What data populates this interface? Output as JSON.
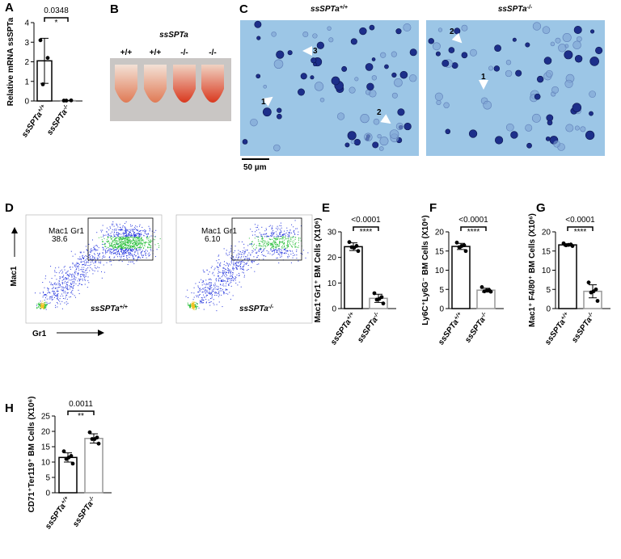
{
  "chart_data": [
    {
      "type": "bar",
      "label": "A",
      "ylabel": "Relative mRNA ssSPTa",
      "categories": [
        "ssSPTa+/+",
        "ssSPTa-/-"
      ],
      "values": [
        2.05,
        0.02
      ],
      "errors": [
        1.15,
        0.01
      ],
      "points": [
        [
          3.1,
          2.2,
          0.85
        ],
        [
          0.02,
          0.03,
          0.02
        ]
      ],
      "colors": [
        "#000000",
        "#999999"
      ],
      "ylim": [
        0,
        4
      ],
      "yticks": [
        0,
        1,
        2,
        3,
        4
      ],
      "pvalue": "0.0348",
      "stars": "*"
    },
    {
      "type": "bar",
      "label": "E",
      "ylabel": "Mac1⁺Gr1⁺ BM Cells (X10⁶)",
      "categories": [
        "ssSPTa+/+",
        "ssSPTa-/-"
      ],
      "values": [
        24.2,
        4.0
      ],
      "errors": [
        1.5,
        1.6
      ],
      "points": [
        [
          26,
          24.5,
          24,
          22.5,
          23.8
        ],
        [
          6,
          4.5,
          3.5,
          2,
          3.8
        ]
      ],
      "colors": [
        "#000000",
        "#999999"
      ],
      "ylim": [
        0,
        30
      ],
      "yticks": [
        0,
        10,
        20,
        30
      ],
      "pvalue": "<0.0001",
      "stars": "****"
    },
    {
      "type": "bar",
      "label": "F",
      "ylabel": "Ly6C⁺Ly6G⁻ BM Cells (X10⁶)",
      "categories": [
        "ssSPTa+/+",
        "ssSPTa-/-"
      ],
      "values": [
        16.2,
        4.8
      ],
      "errors": [
        0.8,
        0.5
      ],
      "points": [
        [
          17.2,
          16.5,
          16,
          15,
          16.3
        ],
        [
          5.6,
          4.8,
          4.5,
          4.4,
          4.7
        ]
      ],
      "colors": [
        "#000000",
        "#999999"
      ],
      "ylim": [
        0,
        20
      ],
      "yticks": [
        0,
        5,
        10,
        15,
        20
      ],
      "pvalue": "<0.0001",
      "stars": "****"
    },
    {
      "type": "bar",
      "label": "G",
      "ylabel": "Mac1⁺ F4/80⁺ BM Cells (X10⁶)",
      "categories": [
        "ssSPTa+/+",
        "ssSPTa-/-"
      ],
      "values": [
        16.6,
        4.5
      ],
      "errors": [
        0.3,
        1.7
      ],
      "points": [
        [
          17,
          16.7,
          16.5,
          16.3,
          16.6
        ],
        [
          6.8,
          5,
          4.2,
          2,
          4.5
        ]
      ],
      "colors": [
        "#000000",
        "#999999"
      ],
      "ylim": [
        0,
        20
      ],
      "yticks": [
        0,
        5,
        10,
        15,
        20
      ],
      "pvalue": "<0.0001",
      "stars": "****"
    },
    {
      "type": "bar",
      "label": "H",
      "ylabel": "CD71⁺Ter119⁺ BM Cells (X10⁶)",
      "categories": [
        "ssSPTa+/+",
        "ssSPTa-/-"
      ],
      "values": [
        11.5,
        17.7
      ],
      "errors": [
        1.5,
        1.5
      ],
      "points": [
        [
          13.5,
          12,
          11,
          9.5,
          11.5
        ],
        [
          19.7,
          18,
          17.5,
          16,
          17.5
        ]
      ],
      "colors": [
        "#000000",
        "#999999"
      ],
      "ylim": [
        0,
        25
      ],
      "yticks": [
        0,
        5,
        10,
        15,
        20,
        25
      ],
      "pvalue": "0.0011",
      "stars": "**"
    }
  ],
  "figure": {
    "B": {
      "label": "B",
      "title": "ssSPTa",
      "tubes": [
        "+/+",
        "+/+",
        "-/-",
        "-/-"
      ]
    },
    "C": {
      "label": "C",
      "titles": [
        "ssSPTa+/+",
        "ssSPTa-/-"
      ],
      "arrows_left": [
        "1",
        "3",
        "2"
      ],
      "arrows_right": [
        "2",
        "1"
      ],
      "scale_bar": "50 µm"
    },
    "D": {
      "label": "D",
      "gates": [
        {
          "name": "Mac1 Gr1",
          "value": "38.6"
        },
        {
          "name": "Mac1 Gr1",
          "value": "6.10"
        }
      ],
      "genotypes": [
        "ssSPTa+/+",
        "ssSPTa-/-"
      ],
      "y_axis": "Mac1",
      "x_axis": "Gr1"
    }
  }
}
